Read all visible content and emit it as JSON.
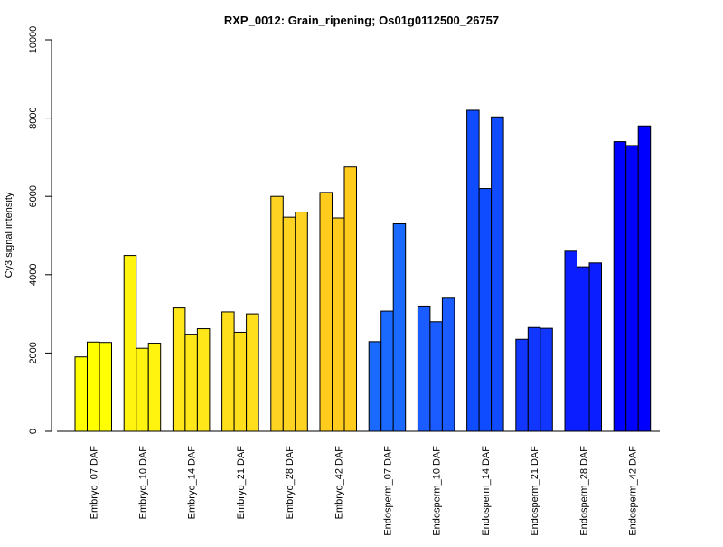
{
  "chart_data": {
    "type": "bar",
    "title": "RXP_0012: Grain_ripening; Os01g0112500_26757",
    "xlabel": "",
    "ylabel": "Cy3 signal intensity",
    "ylim": [
      0,
      10000
    ],
    "yticks": [
      0,
      2000,
      4000,
      6000,
      8000,
      10000
    ],
    "grid": false,
    "legend": "none",
    "replicates_per_group": 3,
    "groups": [
      {
        "label": "Embryo_07 DAF",
        "color": "#ffff00",
        "values": [
          1900,
          2280,
          2270
        ]
      },
      {
        "label": "Embryo_10 DAF",
        "color": "#fff310",
        "values": [
          4490,
          2120,
          2250
        ]
      },
      {
        "label": "Embryo_14 DAF",
        "color": "#ffe71a",
        "values": [
          3150,
          2480,
          2620
        ]
      },
      {
        "label": "Embryo_21 DAF",
        "color": "#ffdf1c",
        "values": [
          3050,
          2530,
          3000
        ]
      },
      {
        "label": "Embryo_28 DAF",
        "color": "#ffd322",
        "values": [
          6000,
          5470,
          5600
        ]
      },
      {
        "label": "Embryo_42 DAF",
        "color": "#ffcb1c",
        "values": [
          6100,
          5450,
          6750
        ]
      },
      {
        "label": "Endosperm_07 DAF",
        "color": "#1a6aff",
        "values": [
          2290,
          3070,
          5300
        ]
      },
      {
        "label": "Endosperm_10 DAF",
        "color": "#1a5cff",
        "values": [
          3200,
          2800,
          3400
        ]
      },
      {
        "label": "Endosperm_14 DAF",
        "color": "#104cff",
        "values": [
          8200,
          6200,
          8030
        ]
      },
      {
        "label": "Endosperm_21 DAF",
        "color": "#1036ff",
        "values": [
          2350,
          2650,
          2630
        ]
      },
      {
        "label": "Endosperm_28 DAF",
        "color": "#0a1eff",
        "values": [
          4600,
          4200,
          4300
        ]
      },
      {
        "label": "Endosperm_42 DAF",
        "color": "#0000ff",
        "values": [
          7400,
          7300,
          7800
        ]
      }
    ]
  }
}
